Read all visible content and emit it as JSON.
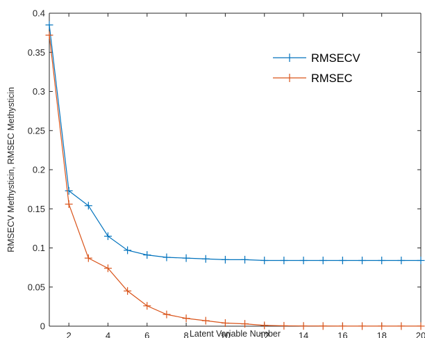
{
  "chart_data": {
    "type": "line",
    "xlabel": "Latent Variable Number",
    "ylabel": "RMSECV Methysticin, RMSEC Methysticin",
    "xlim": [
      1,
      20
    ],
    "ylim": [
      0,
      0.4
    ],
    "x_ticks": [
      "2",
      "4",
      "6",
      "8",
      "10",
      "12",
      "14",
      "16",
      "18",
      "20"
    ],
    "y_ticks": [
      "0",
      "0.05",
      "0.1",
      "0.15",
      "0.2",
      "0.25",
      "0.3",
      "0.35",
      "0.4"
    ],
    "grid": false,
    "legend_position": "top-right",
    "marker": "+",
    "x": [
      1,
      2,
      3,
      4,
      5,
      6,
      7,
      8,
      9,
      10,
      11,
      12,
      13,
      14,
      15,
      16,
      17,
      18,
      19,
      20
    ],
    "series": [
      {
        "name": "RMSECV",
        "color": "#0072BD",
        "values": [
          0.385,
          0.173,
          0.154,
          0.115,
          0.097,
          0.091,
          0.088,
          0.087,
          0.086,
          0.085,
          0.085,
          0.084,
          0.084,
          0.084,
          0.084,
          0.084,
          0.084,
          0.084,
          0.084,
          0.084
        ]
      },
      {
        "name": "RMSEC",
        "color": "#D95319",
        "values": [
          0.372,
          0.156,
          0.087,
          0.074,
          0.045,
          0.026,
          0.015,
          0.01,
          0.007,
          0.004,
          0.003,
          0.001,
          0.0005,
          0.0003,
          0.0002,
          0.0001,
          0.0001,
          0.0001,
          0.0001,
          0.0001
        ]
      }
    ]
  }
}
